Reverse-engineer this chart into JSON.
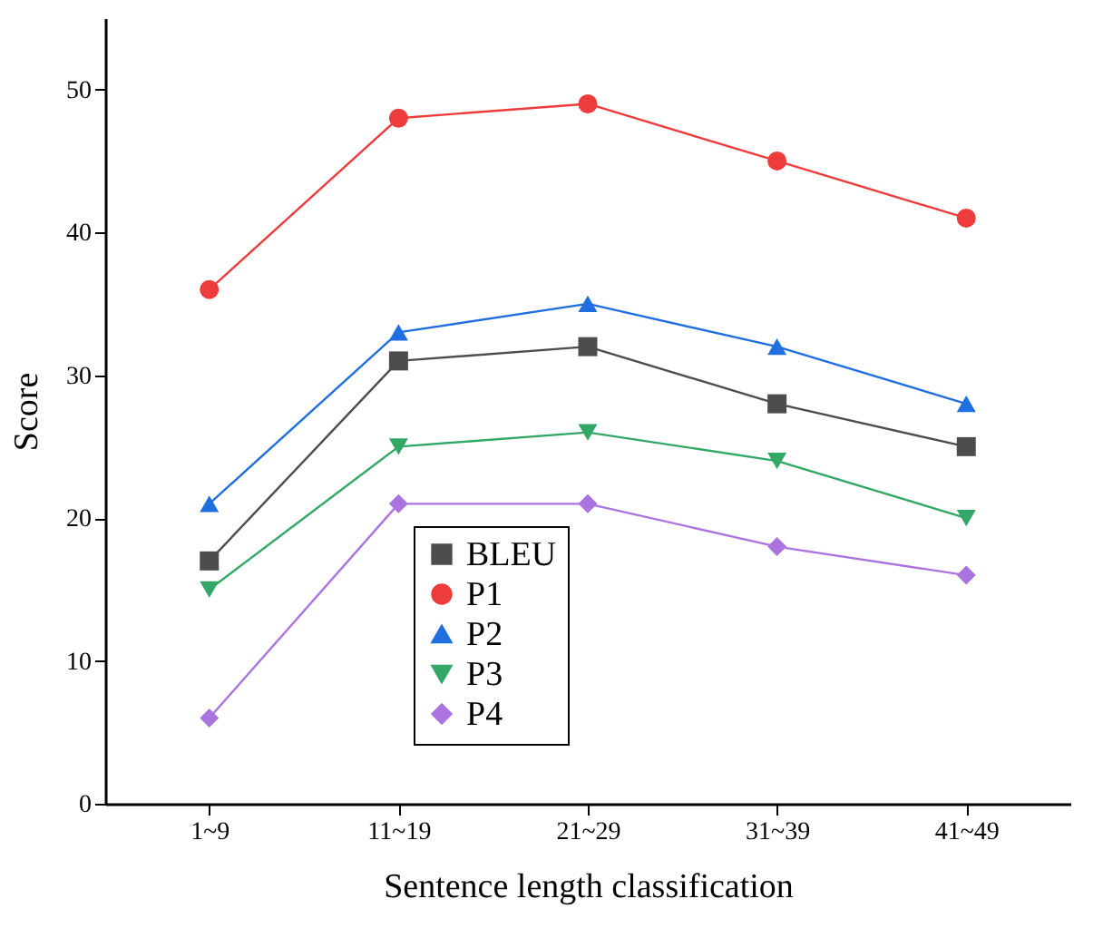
{
  "chart_data": {
    "type": "line",
    "xlabel": "Sentence length classification",
    "ylabel": "Score",
    "categories": [
      "1~9",
      "11~19",
      "21~29",
      "31~39",
      "41~49"
    ],
    "ylim": [
      0,
      55
    ],
    "yticks": [
      0,
      10,
      20,
      30,
      40,
      50
    ],
    "grid": false,
    "legend": "bottom",
    "line_style": "solid",
    "series": [
      {
        "name": "BLEU",
        "color": "#4d4d4d",
        "marker": "square",
        "values": [
          17,
          31,
          32,
          28,
          25
        ]
      },
      {
        "name": "P1",
        "color": "#ee3b3b",
        "marker": "circle",
        "values": [
          36,
          48,
          49,
          45,
          41
        ]
      },
      {
        "name": "P2",
        "color": "#1f6fe0",
        "marker": "triangle",
        "values": [
          21,
          33,
          35,
          32,
          28
        ]
      },
      {
        "name": "P3",
        "color": "#33a866",
        "marker": "triangle-down",
        "values": [
          15,
          25,
          26,
          24,
          20
        ]
      },
      {
        "name": "P4",
        "color": "#ab73e0",
        "marker": "diamond",
        "values": [
          6,
          21,
          21,
          18,
          16
        ]
      }
    ]
  }
}
